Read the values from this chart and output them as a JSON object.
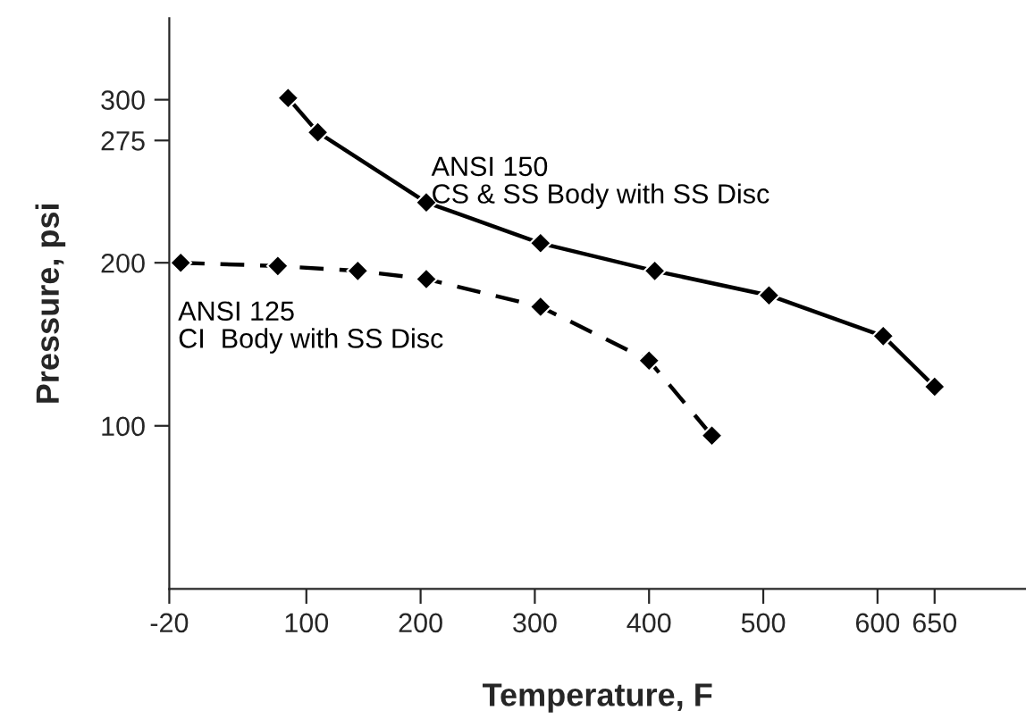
{
  "chart_data": {
    "type": "line",
    "xlabel": "Temperature, F",
    "ylabel": "Pressure, psi",
    "xlim": [
      -20,
      730
    ],
    "xticks": [
      -20,
      100,
      200,
      300,
      400,
      500,
      600,
      650
    ],
    "ylim": [
      0,
      350
    ],
    "yticks": [
      100,
      200,
      275,
      300
    ],
    "grid": false,
    "legend": false,
    "marker": "diamond",
    "series": [
      {
        "name": "ANSI 150\nCS & SS Body with SS Disc",
        "color": "#000000",
        "line_style": "solid",
        "x": [
          84,
          110,
          205,
          305,
          405,
          505,
          605,
          650
        ],
        "values": [
          301,
          280,
          237,
          212,
          195,
          180,
          155,
          124
        ]
      },
      {
        "name": "ANSI 125\nCI  Body with SS Disc",
        "color": "#000000",
        "line_style": "dashed",
        "x": [
          -10,
          75,
          145,
          205,
          305,
          400,
          455
        ],
        "values": [
          200,
          198,
          195,
          190,
          173,
          140,
          94
        ]
      }
    ]
  }
}
